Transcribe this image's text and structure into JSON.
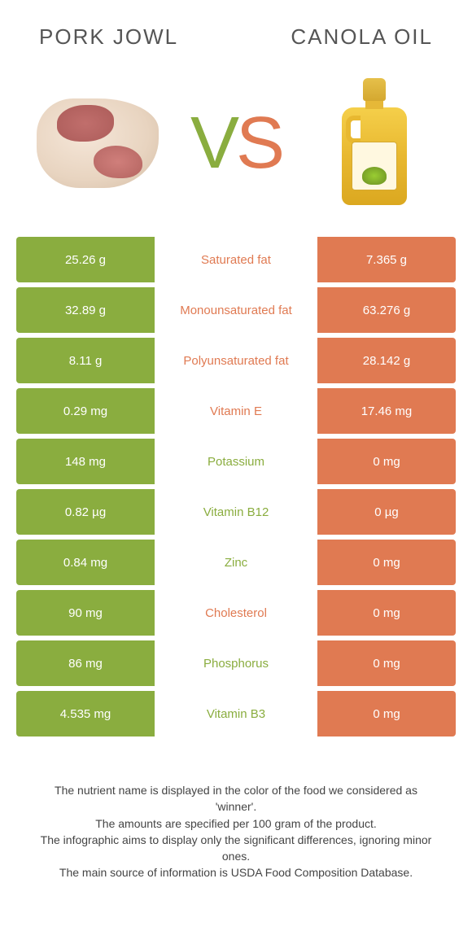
{
  "header": {
    "left_title": "Pork Jowl",
    "right_title": "Canola Oil"
  },
  "vs": {
    "v": "V",
    "s": "S"
  },
  "colors": {
    "left": "#8aad3f",
    "right": "#e07a52",
    "midbg": "#ffffff"
  },
  "rows": [
    {
      "left": "25.26 g",
      "label": "Saturated fat",
      "right": "7.365 g",
      "winner": "right"
    },
    {
      "left": "32.89 g",
      "label": "Monounsaturated fat",
      "right": "63.276 g",
      "winner": "right"
    },
    {
      "left": "8.11 g",
      "label": "Polyunsaturated fat",
      "right": "28.142 g",
      "winner": "right"
    },
    {
      "left": "0.29 mg",
      "label": "Vitamin E",
      "right": "17.46 mg",
      "winner": "right"
    },
    {
      "left": "148 mg",
      "label": "Potassium",
      "right": "0 mg",
      "winner": "left"
    },
    {
      "left": "0.82 µg",
      "label": "Vitamin B12",
      "right": "0 µg",
      "winner": "left"
    },
    {
      "left": "0.84 mg",
      "label": "Zinc",
      "right": "0 mg",
      "winner": "left"
    },
    {
      "left": "90 mg",
      "label": "Cholesterol",
      "right": "0 mg",
      "winner": "right"
    },
    {
      "left": "86 mg",
      "label": "Phosphorus",
      "right": "0 mg",
      "winner": "left"
    },
    {
      "left": "4.535 mg",
      "label": "Vitamin B3",
      "right": "0 mg",
      "winner": "left"
    }
  ],
  "footer": {
    "line1": "The nutrient name is displayed in the color of the food we considered as 'winner'.",
    "line2": "The amounts are specified per 100 gram of the product.",
    "line3": "The infographic aims to display only the significant differences, ignoring minor ones.",
    "line4": "The main source of information is USDA Food Composition Database."
  }
}
